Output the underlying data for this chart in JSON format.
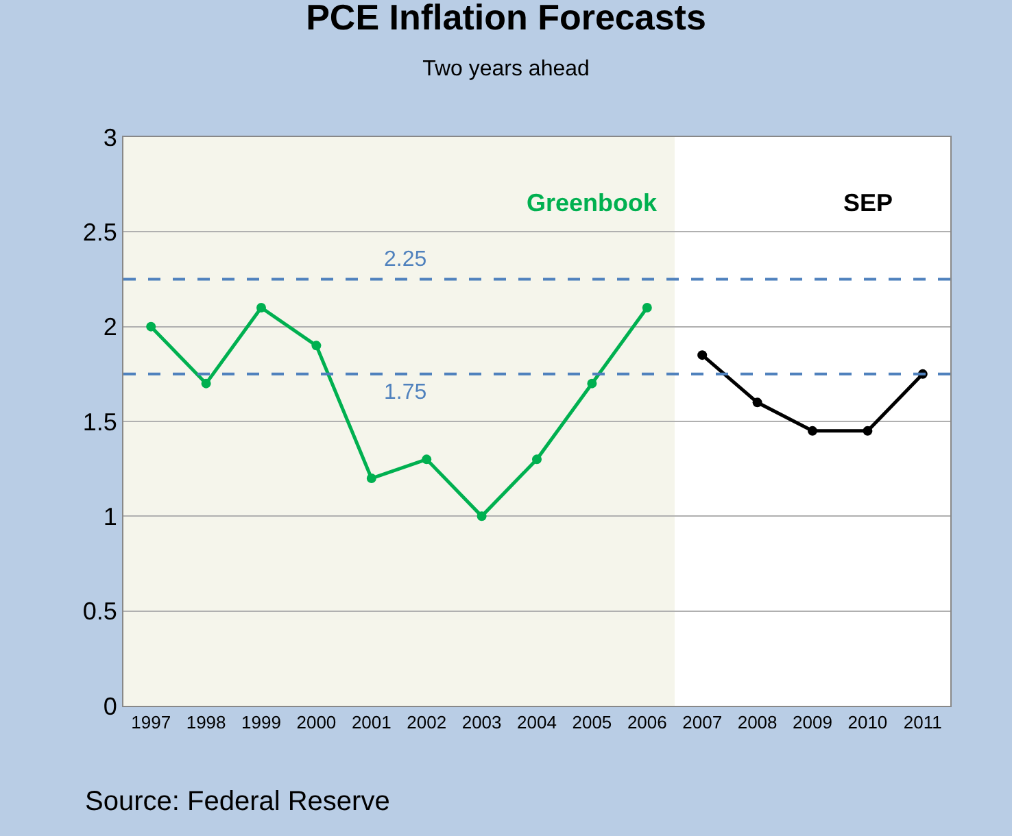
{
  "chart_data": {
    "type": "line",
    "title": "PCE Inflation Forecasts",
    "subtitle": "Two years ahead",
    "categories": [
      "1997",
      "1998",
      "1999",
      "2000",
      "2001",
      "2002",
      "2003",
      "2004",
      "2005",
      "2006",
      "2007",
      "2008",
      "2009",
      "2010",
      "2011"
    ],
    "series": [
      {
        "name": "Greenbook",
        "color": "#00b050",
        "values": [
          2.0,
          1.7,
          2.1,
          1.9,
          1.2,
          1.3,
          1.0,
          1.3,
          1.7,
          2.1,
          null,
          null,
          null,
          null,
          null
        ]
      },
      {
        "name": "SEP",
        "color": "#000000",
        "values": [
          null,
          null,
          null,
          null,
          null,
          null,
          null,
          null,
          null,
          null,
          1.85,
          1.6,
          1.45,
          1.45,
          1.75
        ]
      }
    ],
    "ylim": [
      0,
      3
    ],
    "yticks": [
      0,
      0.5,
      1,
      1.5,
      2,
      2.5,
      3
    ],
    "grid": "y",
    "legend": false,
    "marker": "circle",
    "line_style": "solid",
    "ref_lines": [
      {
        "axis": "y",
        "value": 2.25,
        "label": "2.25",
        "color": "#4f81bd",
        "line_style": "dashed"
      },
      {
        "axis": "y",
        "value": 1.75,
        "label": "1.75",
        "color": "#4f81bd",
        "line_style": "dashed"
      }
    ],
    "bands": [
      {
        "axis": "x",
        "from": "1997",
        "to": "2006",
        "color": "#f5f5eb"
      }
    ],
    "annotations": [
      "Source: Federal Reserve"
    ]
  }
}
